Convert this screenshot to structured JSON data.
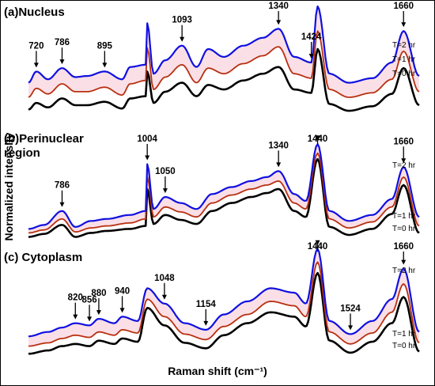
{
  "chart_data": {
    "type": "line",
    "xlabel": "Raman shift (cm⁻¹)",
    "ylabel": "Normalized intensity",
    "x_range_cm-1": [
      700,
      1700
    ],
    "grid": false,
    "legend": "inline labels at right end of each trace",
    "colors": {
      "T=2 hr": "#1010e0",
      "T=1 hr": "#b83010",
      "T=0 hr": "#000000",
      "band": "#f6c4d2",
      "center_line": "#dd0000"
    },
    "panels": [
      {
        "id": "a",
        "title": "(a)Nucleus",
        "peaks": [
          "720",
          "786",
          "895",
          "1093",
          "1340",
          "1424",
          "1660"
        ],
        "series_labels": [
          "T=2 hr",
          "T=1 hr",
          "T=0 hr"
        ],
        "series": [
          {
            "name": "T=2 hr",
            "x": [
              700,
              720,
              750,
              786,
              820,
              850,
              895,
              940,
              960,
              1000,
              1004,
              1020,
              1050,
              1093,
              1130,
              1160,
              1200,
              1250,
              1300,
              1340,
              1380,
              1424,
              1440,
              1470,
              1520,
              1580,
              1630,
              1660,
              1700
            ],
            "y": [
              0.32,
              0.42,
              0.35,
              0.45,
              0.37,
              0.38,
              0.42,
              0.35,
              0.46,
              0.48,
              0.85,
              0.4,
              0.52,
              0.65,
              0.46,
              0.62,
              0.55,
              0.65,
              0.72,
              0.8,
              0.55,
              0.5,
              1.0,
              0.4,
              0.32,
              0.36,
              0.5,
              0.78,
              0.38
            ]
          },
          {
            "name": "T=1 hr",
            "x": [
              700,
              720,
              750,
              786,
              820,
              850,
              895,
              940,
              960,
              1000,
              1004,
              1020,
              1050,
              1093,
              1130,
              1160,
              1200,
              1250,
              1300,
              1340,
              1380,
              1424,
              1440,
              1470,
              1520,
              1580,
              1630,
              1660,
              1700
            ],
            "y": [
              0.19,
              0.27,
              0.22,
              0.31,
              0.24,
              0.24,
              0.28,
              0.21,
              0.31,
              0.34,
              0.63,
              0.26,
              0.37,
              0.48,
              0.32,
              0.45,
              0.4,
              0.49,
              0.56,
              0.64,
              0.4,
              0.36,
              0.78,
              0.26,
              0.19,
              0.23,
              0.35,
              0.6,
              0.24
            ]
          },
          {
            "name": "T=0 hr",
            "x": [
              700,
              720,
              750,
              786,
              820,
              850,
              895,
              940,
              960,
              1000,
              1004,
              1020,
              1050,
              1093,
              1130,
              1160,
              1200,
              1250,
              1300,
              1340,
              1380,
              1424,
              1440,
              1470,
              1520,
              1580,
              1630,
              1660,
              1700
            ],
            "y": [
              0.08,
              0.14,
              0.1,
              0.18,
              0.12,
              0.12,
              0.15,
              0.09,
              0.18,
              0.2,
              0.42,
              0.14,
              0.24,
              0.32,
              0.2,
              0.3,
              0.26,
              0.34,
              0.4,
              0.46,
              0.26,
              0.23,
              0.62,
              0.13,
              0.07,
              0.11,
              0.22,
              0.45,
              0.12
            ]
          }
        ]
      },
      {
        "id": "b",
        "title_lines": [
          "(b)Perinuclear",
          "region"
        ],
        "peaks": [
          "786",
          "1004",
          "1050",
          "1340",
          "1440",
          "1660"
        ],
        "series_labels": [
          "T=2 hr",
          "T=1 hr",
          "T=0 hr"
        ],
        "series": [
          {
            "name": "T=2 hr",
            "x": [
              700,
              740,
              786,
              820,
              860,
              900,
              960,
              1000,
              1004,
              1020,
              1050,
              1090,
              1130,
              1170,
              1220,
              1270,
              1310,
              1340,
              1380,
              1410,
              1440,
              1470,
              1520,
              1580,
              1630,
              1660,
              1700
            ],
            "y": [
              0.1,
              0.14,
              0.28,
              0.12,
              0.18,
              0.2,
              0.24,
              0.28,
              0.75,
              0.3,
              0.42,
              0.36,
              0.3,
              0.45,
              0.52,
              0.58,
              0.62,
              0.68,
              0.45,
              0.38,
              0.95,
              0.28,
              0.18,
              0.24,
              0.4,
              0.72,
              0.22
            ]
          },
          {
            "name": "T=1 hr",
            "x": [
              700,
              740,
              786,
              820,
              860,
              900,
              960,
              1000,
              1004,
              1020,
              1050,
              1090,
              1130,
              1170,
              1220,
              1270,
              1310,
              1340,
              1380,
              1410,
              1440,
              1470,
              1520,
              1580,
              1630,
              1660,
              1700
            ],
            "y": [
              0.06,
              0.09,
              0.2,
              0.07,
              0.11,
              0.13,
              0.16,
              0.2,
              0.62,
              0.22,
              0.32,
              0.27,
              0.22,
              0.36,
              0.44,
              0.5,
              0.54,
              0.58,
              0.36,
              0.3,
              0.86,
              0.2,
              0.11,
              0.17,
              0.32,
              0.62,
              0.13
            ]
          },
          {
            "name": "T=0 hr",
            "x": [
              700,
              740,
              786,
              820,
              860,
              900,
              960,
              1000,
              1004,
              1020,
              1050,
              1090,
              1130,
              1170,
              1220,
              1270,
              1310,
              1340,
              1380,
              1410,
              1440,
              1470,
              1520,
              1580,
              1630,
              1660,
              1700
            ],
            "y": [
              0.02,
              0.05,
              0.14,
              0.02,
              0.06,
              0.08,
              0.1,
              0.13,
              0.5,
              0.15,
              0.24,
              0.19,
              0.15,
              0.28,
              0.36,
              0.42,
              0.46,
              0.5,
              0.28,
              0.22,
              0.8,
              0.12,
              0.04,
              0.1,
              0.25,
              0.54,
              0.06
            ]
          }
        ]
      },
      {
        "id": "c",
        "title": "(c) Cytoplasm",
        "peaks": [
          "820",
          "856",
          "880",
          "940",
          "1048",
          "1154",
          "1440",
          "1524",
          "1660"
        ],
        "series_labels": [
          "T=2 hr",
          "T=1 hr",
          "T=0 hr"
        ],
        "series": [
          {
            "name": "T=2 hr",
            "x": [
              700,
              750,
              786,
              820,
              856,
              880,
              920,
              940,
              980,
              1004,
              1048,
              1100,
              1154,
              1200,
              1260,
              1320,
              1380,
              1410,
              1440,
              1470,
              1524,
              1580,
              1630,
              1660,
              1700
            ],
            "y": [
              0.18,
              0.22,
              0.26,
              0.3,
              0.28,
              0.34,
              0.3,
              0.36,
              0.32,
              0.62,
              0.48,
              0.3,
              0.24,
              0.38,
              0.5,
              0.62,
              0.58,
              0.48,
              0.98,
              0.32,
              0.2,
              0.32,
              0.52,
              0.8,
              0.22
            ]
          },
          {
            "name": "T=1 hr",
            "x": [
              700,
              750,
              786,
              820,
              856,
              880,
              920,
              940,
              980,
              1004,
              1048,
              1100,
              1154,
              1200,
              1260,
              1320,
              1380,
              1410,
              1440,
              1470,
              1524,
              1580,
              1630,
              1660,
              1700
            ],
            "y": [
              0.09,
              0.12,
              0.16,
              0.19,
              0.17,
              0.22,
              0.19,
              0.24,
              0.21,
              0.52,
              0.36,
              0.2,
              0.15,
              0.27,
              0.38,
              0.5,
              0.46,
              0.36,
              0.86,
              0.22,
              0.11,
              0.21,
              0.4,
              0.66,
              0.12
            ]
          },
          {
            "name": "T=0 hr",
            "x": [
              700,
              750,
              786,
              820,
              856,
              880,
              920,
              940,
              980,
              1004,
              1048,
              1100,
              1154,
              1200,
              1260,
              1320,
              1380,
              1410,
              1440,
              1470,
              1524,
              1580,
              1630,
              1660,
              1700
            ],
            "y": [
              0.02,
              0.05,
              0.09,
              0.11,
              0.09,
              0.14,
              0.11,
              0.16,
              0.13,
              0.44,
              0.28,
              0.12,
              0.07,
              0.19,
              0.3,
              0.4,
              0.36,
              0.27,
              0.76,
              0.14,
              0.03,
              0.13,
              0.3,
              0.54,
              0.04
            ]
          }
        ]
      }
    ]
  }
}
